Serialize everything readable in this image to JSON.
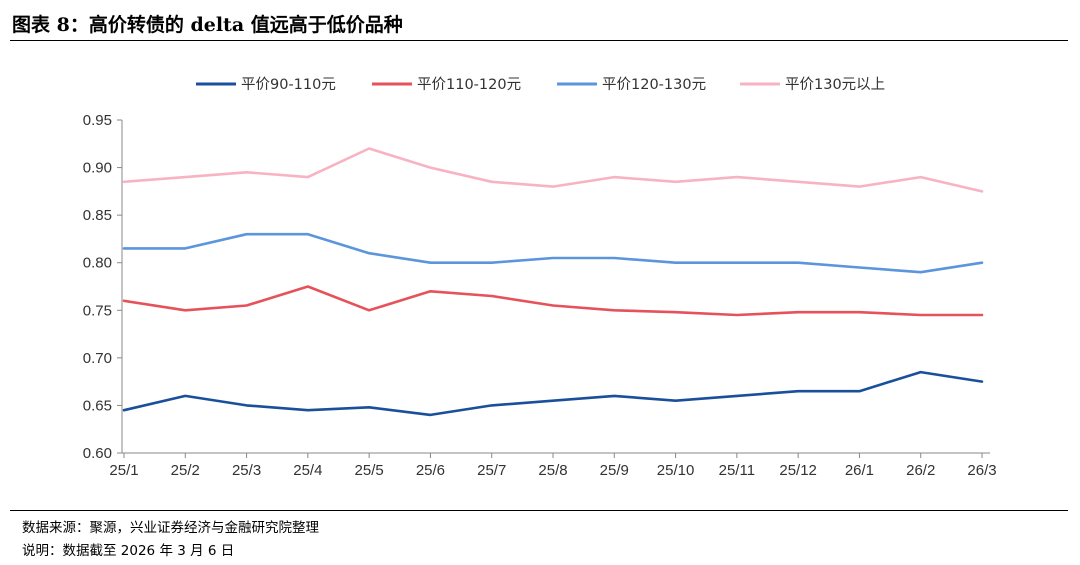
{
  "figure": {
    "title": "图表 8：高价转债的 delta 值远高于低价品种",
    "source": "数据来源：聚源，兴业证券经济与金融研究院整理",
    "note": "说明：数据截至 2026 年 3 月 6 日"
  },
  "chart_data": {
    "type": "line",
    "title": "",
    "xlabel": "",
    "ylabel": "",
    "ylim": [
      0.6,
      0.95
    ],
    "yticks": [
      "0.60",
      "0.65",
      "0.70",
      "0.75",
      "0.80",
      "0.85",
      "0.90",
      "0.95"
    ],
    "x": [
      "25/1",
      "25/2",
      "25/3",
      "25/4",
      "25/5",
      "25/6",
      "25/7",
      "25/8",
      "25/9",
      "25/10",
      "25/11",
      "25/12",
      "26/1",
      "26/2",
      "26/3"
    ],
    "grid": false,
    "legend": "top",
    "series": [
      {
        "name": "平价90-110元",
        "color": "#1a4f9c",
        "values": [
          0.645,
          0.66,
          0.65,
          0.645,
          0.648,
          0.64,
          0.65,
          0.655,
          0.66,
          0.655,
          0.66,
          0.665,
          0.665,
          0.685,
          0.675
        ]
      },
      {
        "name": "平价110-120元",
        "color": "#e5525a",
        "values": [
          0.76,
          0.75,
          0.755,
          0.775,
          0.75,
          0.77,
          0.765,
          0.755,
          0.75,
          0.748,
          0.745,
          0.748,
          0.748,
          0.745,
          0.745
        ]
      },
      {
        "name": "平价120-130元",
        "color": "#5b95dc",
        "values": [
          0.815,
          0.815,
          0.83,
          0.83,
          0.81,
          0.8,
          0.8,
          0.805,
          0.805,
          0.8,
          0.8,
          0.8,
          0.795,
          0.79,
          0.8
        ]
      },
      {
        "name": "平价130元以上",
        "color": "#f7b3c2",
        "values": [
          0.885,
          0.89,
          0.895,
          0.89,
          0.92,
          0.9,
          0.885,
          0.88,
          0.89,
          0.885,
          0.89,
          0.885,
          0.88,
          0.89,
          0.875
        ]
      }
    ]
  }
}
